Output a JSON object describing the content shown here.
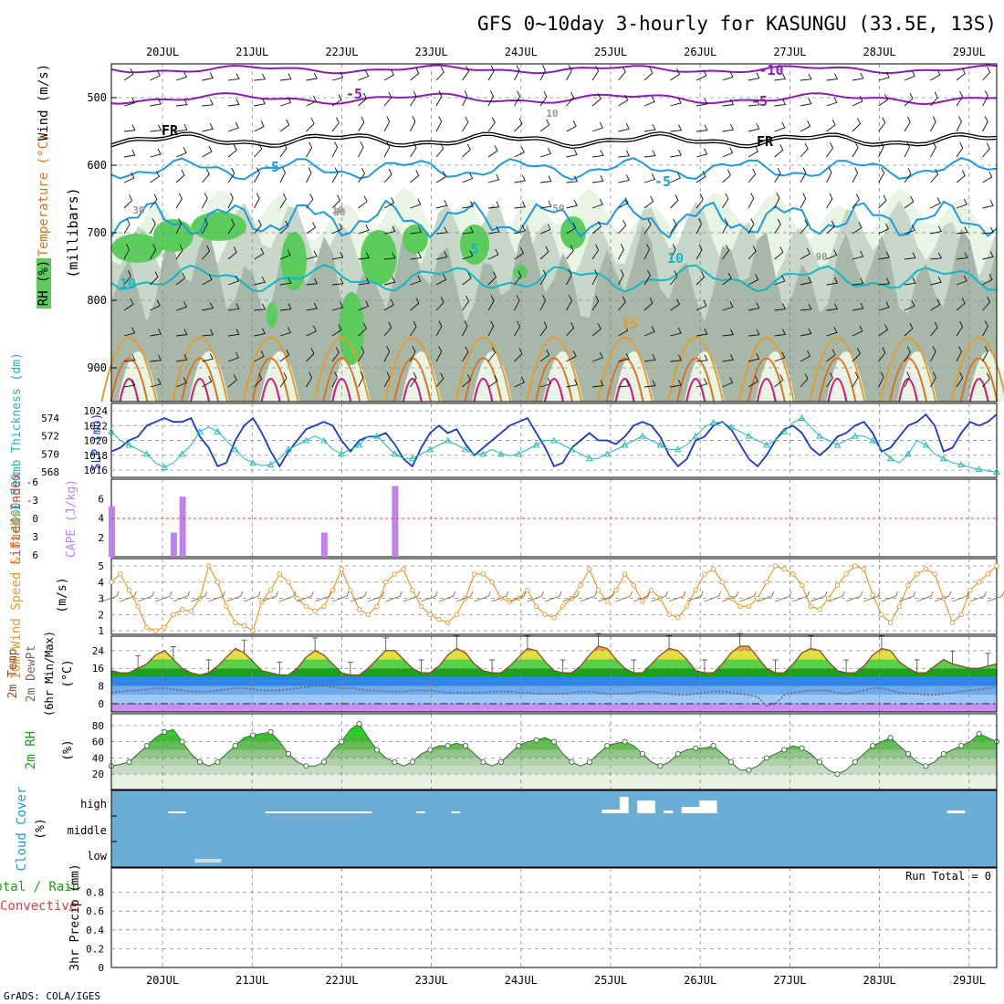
{
  "title": "GFS 0~10day 3-hourly for KASUNGU (33.5E, 13S)",
  "footer": "GrADS: COLA/IGES",
  "dates": [
    "20JUL",
    "21JUL",
    "22JUL",
    "23JUL",
    "24JUL",
    "25JUL",
    "26JUL",
    "27JUL",
    "28JUL",
    "29JUL"
  ],
  "colors": {
    "purple": "#8c1cb4",
    "black": "#000000",
    "blue": "#1e9be0",
    "teal": "#12b7c8",
    "orange": "#e89a2a",
    "darkorange": "#e07018",
    "magenta": "#d0207a",
    "rh_light": "#e8f5e4",
    "rh_mid": "#c8d8c8",
    "rh_dark": "#a8b8a8",
    "rh_green": "#5ccc5c",
    "slp": "#1a37c8",
    "thick": "#18b8b8",
    "cape": "#c080f0",
    "li": "#e04040",
    "wind10": "#e89a2a",
    "barb": "#8a6a4a",
    "temp": "#8a4a2a",
    "dew": "#806050",
    "cloud_bg": "#6aaed6",
    "cloud_fill": "#ffffff"
  },
  "panels": {
    "upper": {
      "labels": [
        "Wind (m/s)",
        "Temperature (°C)",
        "RH (%)",
        "(millibars)"
      ],
      "yticks": [
        "500",
        "600",
        "700",
        "800",
        "900"
      ],
      "contour_labels": [
        "-10",
        "-5",
        "-5",
        "FR",
        "FR",
        "-5",
        "-5",
        "5",
        "10",
        "10",
        "15",
        "30",
        "10",
        "30",
        "50",
        "90",
        "10"
      ]
    },
    "slp": {
      "labels": [
        "1000-500mb Thickness (dm)",
        "SLP (mb)"
      ],
      "left_ticks": [
        "574",
        "572",
        "570",
        "568"
      ],
      "right_ticks": [
        "1024",
        "1022",
        "1020",
        "1018",
        "1016"
      ]
    },
    "cape": {
      "labels": [
        "Lifted Index",
        "CAPE (J/kg)"
      ],
      "left_ticks": [
        "-6",
        "-3",
        "0",
        "3",
        "6"
      ],
      "right_ticks": [
        "6",
        "4",
        "2"
      ]
    },
    "wind": {
      "labels": [
        "10m Wind Speed & Barbs",
        "(m/s)"
      ],
      "yticks": [
        "5",
        "4",
        "3",
        "2",
        "1"
      ]
    },
    "temp": {
      "labels": [
        "2m Temp",
        "2m DewPt",
        "(6hr Min/Max)",
        "(°C)"
      ],
      "yticks": [
        "24",
        "16",
        "8",
        "0"
      ]
    },
    "rh": {
      "labels": [
        "2m RH",
        "(%)"
      ],
      "yticks": [
        "80",
        "60",
        "40",
        "20"
      ]
    },
    "cloud": {
      "labels": [
        "Cloud Cover",
        "(%)"
      ],
      "levels": [
        "high",
        "middle",
        "low"
      ]
    },
    "precip": {
      "labels": [
        "Total / Rain",
        "Convective",
        "3hr Precip (mm)"
      ],
      "yticks": [
        "0.8",
        "0.6",
        "0.4",
        "0.2",
        "0"
      ],
      "run_total": "Run Total = 0"
    }
  },
  "chart_data": [
    {
      "type": "line",
      "name": "SLP (mb)",
      "x_start": "2025-07-19 12Z",
      "x_step_hours": 3,
      "ylim": [
        1015,
        1024
      ],
      "values": [
        1018.5,
        1019,
        1020,
        1020.5,
        1022,
        1022.5,
        1023,
        1022.5,
        1022.5,
        1023,
        1020.5,
        1019,
        1016.5,
        1017,
        1020,
        1022,
        1023,
        1021,
        1018.5,
        1016.5,
        1018.5,
        1020,
        1021.5,
        1022,
        1022.5,
        1022,
        1020,
        1018.5,
        1020,
        1020.5,
        1020.5,
        1021,
        1019.5,
        1017.5,
        1016.5,
        1019,
        1021,
        1022,
        1021,
        1021.5,
        1019.5,
        1018,
        1019,
        1020,
        1021,
        1022,
        1022.5,
        1023,
        1021,
        1019,
        1016.5,
        1017,
        1019,
        1020,
        1021,
        1020,
        1020,
        1019.5,
        1020.5,
        1022,
        1022.5,
        1022,
        1020.5,
        1018,
        1016.5,
        1017.5,
        1020,
        1020.5,
        1022,
        1022.5,
        1021.5,
        1019.5,
        1017.5,
        1016.5,
        1018,
        1020,
        1021.5,
        1022,
        1021,
        1019,
        1018,
        1019,
        1020.5,
        1021,
        1022,
        1022.5,
        1021,
        1018.5,
        1019,
        1020.5,
        1022,
        1022.5,
        1023.5,
        1022,
        1018.5,
        1019,
        1021,
        1022.5,
        1022,
        1022.5,
        1023.5
      ]
    },
    {
      "type": "line",
      "name": "1000-500mb Thickness (dm)",
      "ylim": [
        568,
        575
      ],
      "values": [
        572.5,
        571.5,
        571,
        570.5,
        570,
        569,
        568.5,
        569,
        570,
        571,
        572.5,
        573,
        572.5,
        571.5,
        570.5,
        569.5,
        569,
        568.7,
        568.8,
        569.5,
        570.5,
        571,
        571.5,
        572,
        571.5,
        570.5,
        570,
        570.5,
        571,
        572,
        572,
        571,
        570,
        569.5,
        569.5,
        570,
        570.5,
        571,
        571.5,
        571,
        570.5,
        570,
        570,
        570.5,
        570,
        569.8,
        570,
        570.5,
        571,
        571.5,
        571.5,
        571,
        570.5,
        570,
        569.5,
        569.5,
        570,
        570.5,
        571,
        571.5,
        572,
        571.5,
        571,
        570.5,
        570.5,
        571,
        572,
        573,
        573.5,
        573.5,
        573,
        572.5,
        572,
        571.5,
        571,
        571.5,
        572.5,
        573.5,
        574,
        573,
        572,
        571.5,
        571,
        571.5,
        572,
        572,
        571.5,
        570.5,
        569.5,
        569,
        570,
        571.5,
        571,
        570,
        569.5,
        569,
        568.8,
        568.5,
        568.3,
        568.1,
        568
      ]
    },
    {
      "type": "bar",
      "name": "CAPE (J/kg)",
      "ylim": [
        0,
        8
      ],
      "bars": [
        {
          "step": 0,
          "value": 5.2
        },
        {
          "step": 7,
          "value": 2.5
        },
        {
          "step": 8,
          "value": 6.2
        },
        {
          "step": 24,
          "value": 2.5
        },
        {
          "step": 32,
          "value": 7.3
        }
      ]
    },
    {
      "type": "line",
      "name": "10m Wind Speed (m/s)",
      "ylim": [
        1,
        5
      ],
      "values": [
        4,
        4.5,
        3.5,
        2.5,
        1.2,
        1,
        1.2,
        2,
        2.3,
        2.2,
        3,
        5,
        4,
        2.5,
        1.5,
        1.3,
        1,
        2.8,
        3.5,
        4.5,
        4,
        3,
        2.5,
        2.2,
        2.5,
        3.5,
        4.8,
        3.5,
        2.3,
        2,
        2.5,
        4,
        4.5,
        4.8,
        3.5,
        2.5,
        2,
        1.7,
        1.5,
        2,
        3,
        4.5,
        4.5,
        4,
        3,
        2.8,
        3,
        3.5,
        2.5,
        2,
        1.8,
        2.5,
        3,
        3.8,
        4.8,
        3.5,
        2.8,
        3.5,
        4.5,
        3.8,
        2.8,
        3.5,
        3,
        2,
        1.8,
        2.5,
        3.5,
        4.5,
        4.8,
        4,
        3,
        2.5,
        2.5,
        3,
        4,
        5,
        4.8,
        4.5,
        3.8,
        2.5,
        2.3,
        3,
        3.8,
        4.5,
        5,
        4.8,
        3.2,
        2,
        1.5,
        2.5,
        3.8,
        4.5,
        4.8,
        4.5,
        3,
        1.5,
        2,
        3.5,
        4,
        4.5,
        5
      ]
    },
    {
      "type": "line",
      "name": "2m Temp (°C)",
      "ylim": [
        -4,
        28
      ],
      "values": [
        15,
        14,
        14,
        16,
        18,
        22,
        24,
        20,
        16,
        14,
        13,
        14,
        17,
        21,
        25,
        23,
        19,
        15,
        14,
        13,
        13,
        16,
        21,
        24,
        22,
        18,
        14,
        13,
        13,
        16,
        20,
        24,
        24,
        20,
        16,
        14,
        14,
        17,
        22,
        25,
        23,
        18,
        15,
        14,
        14,
        17,
        21,
        25,
        24,
        19,
        15,
        14,
        14,
        17,
        22,
        26,
        25,
        20,
        16,
        14,
        14,
        18,
        22,
        25,
        24,
        20,
        15,
        14,
        14,
        18,
        23,
        26,
        26,
        21,
        16,
        14,
        14,
        18,
        23,
        25,
        24,
        19,
        15,
        14,
        14,
        17,
        22,
        25,
        24,
        19,
        16,
        14,
        14,
        17,
        20,
        18,
        17,
        16,
        16,
        17,
        18
      ]
    },
    {
      "type": "line",
      "name": "2m DewPt (°C)",
      "ylim": [
        -4,
        28
      ],
      "values": [
        5,
        5.5,
        6,
        6,
        6.5,
        7,
        7,
        6.5,
        6,
        5.5,
        5.5,
        5.5,
        6,
        6.5,
        7,
        7,
        6.5,
        6,
        6,
        6,
        6.5,
        7,
        7.5,
        8,
        8,
        7.5,
        7,
        7,
        6.5,
        6,
        6,
        5.5,
        5.5,
        5.5,
        6,
        6,
        6,
        5.5,
        5,
        5,
        5,
        5,
        5,
        5.5,
        5.5,
        5.5,
        5,
        5,
        4.5,
        4.5,
        4.5,
        4.5,
        5,
        5.5,
        5.5,
        5,
        4.5,
        4.5,
        4.5,
        5,
        5.5,
        5.5,
        5,
        4.5,
        4,
        4,
        4.5,
        5,
        5.5,
        5.5,
        5,
        4.5,
        4,
        3,
        -1,
        0,
        4,
        5,
        5.5,
        6,
        6,
        6,
        5,
        4.5,
        5,
        6,
        7,
        7,
        6,
        5,
        4.5,
        4.5,
        4,
        4,
        4.5,
        5,
        5.5,
        6,
        6.5,
        7,
        7.5
      ]
    },
    {
      "type": "area",
      "name": "2m RH (%)",
      "ylim": [
        10,
        90
      ],
      "values": [
        30,
        32,
        35,
        45,
        55,
        65,
        72,
        75,
        60,
        45,
        35,
        30,
        35,
        45,
        55,
        65,
        68,
        70,
        72,
        60,
        45,
        35,
        30,
        30,
        35,
        50,
        60,
        75,
        82,
        65,
        50,
        40,
        35,
        30,
        35,
        45,
        50,
        55,
        55,
        58,
        55,
        45,
        35,
        30,
        35,
        45,
        55,
        60,
        62,
        65,
        60,
        45,
        35,
        30,
        35,
        45,
        55,
        58,
        60,
        55,
        45,
        35,
        30,
        35,
        45,
        50,
        52,
        52,
        55,
        45,
        35,
        25,
        25,
        30,
        40,
        45,
        50,
        55,
        52,
        45,
        35,
        25,
        20,
        25,
        35,
        45,
        55,
        60,
        65,
        55,
        45,
        35,
        30,
        35,
        45,
        50,
        55,
        60,
        70,
        65,
        60
      ]
    },
    {
      "type": "bar",
      "name": "Cloud Cover (%)",
      "high_segments": [
        [
          6,
          8
        ],
        [
          17,
          29
        ],
        [
          34,
          35
        ],
        [
          38,
          39
        ],
        [
          55,
          57
        ],
        [
          57,
          58
        ],
        [
          59,
          61
        ],
        [
          62,
          63
        ],
        [
          64,
          66
        ],
        [
          66,
          68
        ],
        [
          94,
          96
        ]
      ],
      "low_segments": [
        [
          9,
          12
        ]
      ]
    },
    {
      "type": "bar",
      "name": "3hr Precip (mm)",
      "ylim": [
        0,
        1
      ],
      "values": []
    }
  ]
}
